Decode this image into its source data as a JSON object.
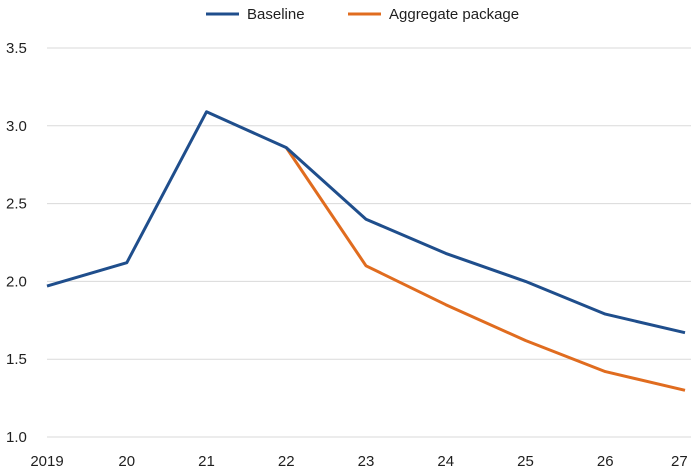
{
  "chart_data": {
    "type": "line",
    "x": [
      "2019",
      "20",
      "21",
      "22",
      "23",
      "24",
      "25",
      "26",
      "27"
    ],
    "ylim": [
      1.0,
      3.5
    ],
    "yticks": [
      "1.0",
      "1.5",
      "2.0",
      "2.5",
      "3.0",
      "3.5"
    ],
    "grid": "horizontal",
    "legend": "top-center",
    "series": [
      {
        "name": "Baseline",
        "color": "#1f4e8c",
        "values": [
          1.97,
          2.12,
          3.09,
          2.86,
          2.4,
          2.18,
          2.0,
          1.79,
          1.67
        ]
      },
      {
        "name": "Aggregate package",
        "color": "#e06c1f",
        "values": [
          null,
          null,
          null,
          2.86,
          2.1,
          1.85,
          1.62,
          1.42,
          1.3
        ]
      }
    ]
  }
}
